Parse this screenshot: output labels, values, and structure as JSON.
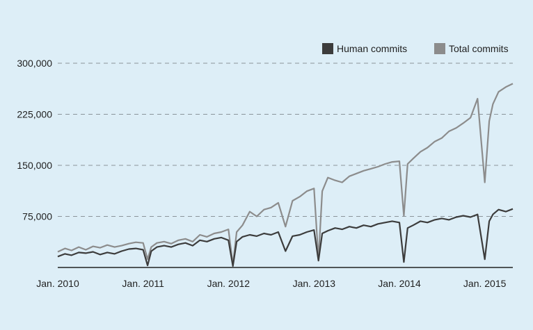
{
  "chart_data": {
    "type": "line",
    "title": "",
    "xlabel": "",
    "ylabel": "",
    "x_range": [
      "2010-01-01",
      "2015-05-01"
    ],
    "ylim": [
      0,
      300000
    ],
    "grid": "horizontal dashed",
    "legend_position": "top-right",
    "x_ticks": [
      {
        "date": "2010-01-01",
        "label": "Jan. 2010"
      },
      {
        "date": "2011-01-01",
        "label": "Jan. 2011"
      },
      {
        "date": "2012-01-01",
        "label": "Jan. 2012"
      },
      {
        "date": "2013-01-01",
        "label": "Jan. 2013"
      },
      {
        "date": "2014-01-01",
        "label": "Jan. 2014"
      },
      {
        "date": "2015-01-01",
        "label": "Jan. 2015"
      }
    ],
    "y_ticks": [
      {
        "value": 75000,
        "label": "75,000"
      },
      {
        "value": 150000,
        "label": "150,000"
      },
      {
        "value": 225000,
        "label": "225,000"
      },
      {
        "value": 300000,
        "label": "300,000"
      }
    ],
    "series": [
      {
        "name": "Total commits",
        "color": "#8c8c8c",
        "points": [
          [
            "2010-01-01",
            23000
          ],
          [
            "2010-02-01",
            28000
          ],
          [
            "2010-03-01",
            25000
          ],
          [
            "2010-04-01",
            30000
          ],
          [
            "2010-05-01",
            26000
          ],
          [
            "2010-06-01",
            31000
          ],
          [
            "2010-07-01",
            29000
          ],
          [
            "2010-08-01",
            33000
          ],
          [
            "2010-09-01",
            30000
          ],
          [
            "2010-10-01",
            32000
          ],
          [
            "2010-11-01",
            35000
          ],
          [
            "2010-12-01",
            37000
          ],
          [
            "2011-01-01",
            36000
          ],
          [
            "2011-01-20",
            12000
          ],
          [
            "2011-02-05",
            30000
          ],
          [
            "2011-03-01",
            36000
          ],
          [
            "2011-04-01",
            38000
          ],
          [
            "2011-05-01",
            35000
          ],
          [
            "2011-06-01",
            40000
          ],
          [
            "2011-07-01",
            42000
          ],
          [
            "2011-08-01",
            38000
          ],
          [
            "2011-09-01",
            48000
          ],
          [
            "2011-10-01",
            45000
          ],
          [
            "2011-11-01",
            50000
          ],
          [
            "2011-12-01",
            52000
          ],
          [
            "2012-01-01",
            56000
          ],
          [
            "2012-01-20",
            4000
          ],
          [
            "2012-02-05",
            52000
          ],
          [
            "2012-03-01",
            62000
          ],
          [
            "2012-04-01",
            82000
          ],
          [
            "2012-05-01",
            75000
          ],
          [
            "2012-06-01",
            85000
          ],
          [
            "2012-07-01",
            88000
          ],
          [
            "2012-08-01",
            95000
          ],
          [
            "2012-09-01",
            60000
          ],
          [
            "2012-10-01",
            98000
          ],
          [
            "2012-11-01",
            104000
          ],
          [
            "2012-12-01",
            112000
          ],
          [
            "2013-01-01",
            116000
          ],
          [
            "2013-01-20",
            12000
          ],
          [
            "2013-02-05",
            112000
          ],
          [
            "2013-03-01",
            132000
          ],
          [
            "2013-04-01",
            128000
          ],
          [
            "2013-05-01",
            125000
          ],
          [
            "2013-06-01",
            134000
          ],
          [
            "2013-07-01",
            138000
          ],
          [
            "2013-08-01",
            142000
          ],
          [
            "2013-09-01",
            145000
          ],
          [
            "2013-10-01",
            148000
          ],
          [
            "2013-11-01",
            152000
          ],
          [
            "2013-12-01",
            155000
          ],
          [
            "2014-01-01",
            156000
          ],
          [
            "2014-01-20",
            76000
          ],
          [
            "2014-02-05",
            152000
          ],
          [
            "2014-03-01",
            160000
          ],
          [
            "2014-04-01",
            170000
          ],
          [
            "2014-05-01",
            176000
          ],
          [
            "2014-06-01",
            185000
          ],
          [
            "2014-07-01",
            190000
          ],
          [
            "2014-08-01",
            200000
          ],
          [
            "2014-09-01",
            205000
          ],
          [
            "2014-10-01",
            212000
          ],
          [
            "2014-11-01",
            220000
          ],
          [
            "2014-12-01",
            248000
          ],
          [
            "2015-01-01",
            125000
          ],
          [
            "2015-01-20",
            215000
          ],
          [
            "2015-02-05",
            240000
          ],
          [
            "2015-03-01",
            258000
          ],
          [
            "2015-04-01",
            265000
          ],
          [
            "2015-05-01",
            270000
          ]
        ]
      },
      {
        "name": "Human commits",
        "color": "#3c3c3c",
        "points": [
          [
            "2010-01-01",
            16000
          ],
          [
            "2010-02-01",
            20000
          ],
          [
            "2010-03-01",
            18000
          ],
          [
            "2010-04-01",
            22000
          ],
          [
            "2010-05-01",
            21000
          ],
          [
            "2010-06-01",
            23000
          ],
          [
            "2010-07-01",
            19000
          ],
          [
            "2010-08-01",
            22000
          ],
          [
            "2010-09-01",
            20000
          ],
          [
            "2010-10-01",
            24000
          ],
          [
            "2010-11-01",
            27000
          ],
          [
            "2010-12-01",
            28000
          ],
          [
            "2011-01-01",
            26000
          ],
          [
            "2011-01-20",
            3000
          ],
          [
            "2011-02-05",
            24000
          ],
          [
            "2011-03-01",
            30000
          ],
          [
            "2011-04-01",
            32000
          ],
          [
            "2011-05-01",
            30000
          ],
          [
            "2011-06-01",
            34000
          ],
          [
            "2011-07-01",
            36000
          ],
          [
            "2011-08-01",
            32000
          ],
          [
            "2011-09-01",
            40000
          ],
          [
            "2011-10-01",
            38000
          ],
          [
            "2011-11-01",
            42000
          ],
          [
            "2011-12-01",
            44000
          ],
          [
            "2012-01-01",
            40000
          ],
          [
            "2012-01-20",
            2000
          ],
          [
            "2012-02-05",
            38000
          ],
          [
            "2012-03-01",
            45000
          ],
          [
            "2012-04-01",
            48000
          ],
          [
            "2012-05-01",
            46000
          ],
          [
            "2012-06-01",
            50000
          ],
          [
            "2012-07-01",
            48000
          ],
          [
            "2012-08-01",
            52000
          ],
          [
            "2012-09-01",
            24000
          ],
          [
            "2012-10-01",
            46000
          ],
          [
            "2012-11-01",
            48000
          ],
          [
            "2012-12-01",
            52000
          ],
          [
            "2013-01-01",
            55000
          ],
          [
            "2013-01-20",
            10000
          ],
          [
            "2013-02-05",
            50000
          ],
          [
            "2013-03-01",
            54000
          ],
          [
            "2013-04-01",
            58000
          ],
          [
            "2013-05-01",
            56000
          ],
          [
            "2013-06-01",
            60000
          ],
          [
            "2013-07-01",
            58000
          ],
          [
            "2013-08-01",
            62000
          ],
          [
            "2013-09-01",
            60000
          ],
          [
            "2013-10-01",
            64000
          ],
          [
            "2013-11-01",
            66000
          ],
          [
            "2013-12-01",
            68000
          ],
          [
            "2014-01-01",
            66000
          ],
          [
            "2014-01-20",
            8000
          ],
          [
            "2014-02-05",
            58000
          ],
          [
            "2014-03-01",
            62000
          ],
          [
            "2014-04-01",
            68000
          ],
          [
            "2014-05-01",
            66000
          ],
          [
            "2014-06-01",
            70000
          ],
          [
            "2014-07-01",
            72000
          ],
          [
            "2014-08-01",
            70000
          ],
          [
            "2014-09-01",
            74000
          ],
          [
            "2014-10-01",
            76000
          ],
          [
            "2014-11-01",
            74000
          ],
          [
            "2014-12-01",
            78000
          ],
          [
            "2015-01-01",
            12000
          ],
          [
            "2015-01-20",
            68000
          ],
          [
            "2015-02-05",
            78000
          ],
          [
            "2015-03-01",
            85000
          ],
          [
            "2015-04-01",
            82000
          ],
          [
            "2015-05-01",
            86000
          ]
        ]
      }
    ]
  }
}
